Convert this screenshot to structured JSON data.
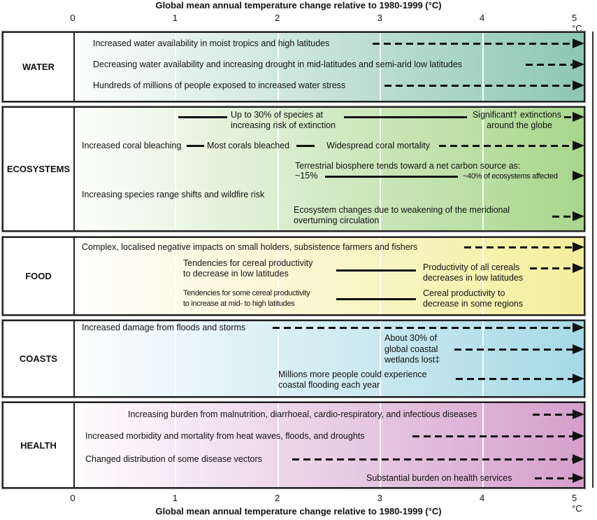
{
  "axis": {
    "title": "Global mean annual temperature change relative to 1980-1999 (°C)",
    "ticks": [
      "0",
      "1",
      "2",
      "3",
      "4",
      "5 °C"
    ]
  },
  "panels": [
    {
      "label": "WATER",
      "color_start": "#ffffff",
      "color_end": "#8ec7b3",
      "items": [
        "Increased water availability in moist tropics and high latitudes",
        "Decreasing water availability and increasing drought in mid-latitudes and semi-arid low latitudes",
        "Hundreds of millions of people exposed to increased water stress"
      ]
    },
    {
      "label": "ECOSYSTEMS",
      "color_start": "#ffffff",
      "color_end": "#a8d68c",
      "items": [
        "Up to 30% of species at",
        "increasing risk of extinction",
        "Significant† extinctions",
        "around the globe",
        "Increased coral bleaching",
        "Most corals bleached",
        "Widespread coral mortality",
        "Terrestrial biosphere tends toward a net carbon source as:",
        "~15%",
        "~40% of ecosystems affected",
        "Increasing species range shifts and wildfire risk",
        "Ecosystem changes due to weakening of the meridional",
        "overturning circulation"
      ]
    },
    {
      "label": "FOOD",
      "color_start": "#ffffff",
      "color_end": "#f3ee9c",
      "items": [
        "Complex, localised negative impacts on small holders, subsistence farmers and fishers",
        "Tendencies for cereal productivity",
        "to decrease in low latitudes",
        "Productivity of all cereals",
        "decreases in low latitudes",
        "Tendencies for some cereal productivity",
        "to increase at mid- to high latitudes",
        "Cereal productivity to",
        "decrease in some regions"
      ]
    },
    {
      "label": "COASTS",
      "color_start": "#ffffff",
      "color_end": "#a6d9e6",
      "items": [
        "Increased damage from floods and storms",
        "About 30% of",
        "global coastal",
        "wetlands lost‡",
        "Millions more people could experience",
        "coastal flooding each year"
      ]
    },
    {
      "label": "HEALTH",
      "color_start": "#ffffff",
      "color_end": "#d59fcd",
      "items": [
        "Increasing burden from malnutrition, diarrhoeal, cardio-respiratory, and infectious diseases",
        "Increased morbidity and mortality from heat waves, floods, and droughts",
        "Changed distribution of some disease vectors",
        "Substantial burden on health services"
      ]
    }
  ]
}
